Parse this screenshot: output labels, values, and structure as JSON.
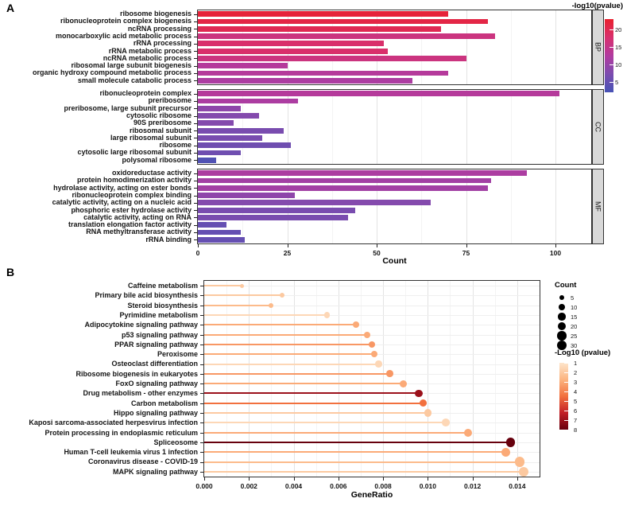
{
  "figure": {
    "panelA": {
      "label": "A"
    },
    "panelB": {
      "label": "B"
    }
  },
  "chart_data": [
    {
      "type": "bar",
      "panel": "A",
      "orientation": "horizontal",
      "xlabel": "Count",
      "xlim": [
        0,
        110
      ],
      "xticks": [
        0,
        25,
        50,
        75,
        100
      ],
      "color_legend": {
        "title": "-log10(pvalue)",
        "domain": [
          2,
          23
        ],
        "ticks": [
          20,
          15,
          10,
          5
        ],
        "stops": [
          "#4753B5",
          "#7C4CAF",
          "#B13BA0",
          "#D8306E",
          "#E9202E"
        ]
      },
      "facets": [
        {
          "label": "BP",
          "rows": [
            {
              "label": "ribosome biogenesis",
              "value": 70,
              "neglog10_pvalue": 22
            },
            {
              "label": "ribonucleoprotein complex biogenesis",
              "value": 81,
              "neglog10_pvalue": 21
            },
            {
              "label": "ncRNA processing",
              "value": 68,
              "neglog10_pvalue": 20
            },
            {
              "label": "monocarboxylic acid metabolic process",
              "value": 83,
              "neglog10_pvalue": 16
            },
            {
              "label": "rRNA processing",
              "value": 52,
              "neglog10_pvalue": 18
            },
            {
              "label": "rRNA metabolic process",
              "value": 53,
              "neglog10_pvalue": 18
            },
            {
              "label": "ncRNA metabolic process",
              "value": 75,
              "neglog10_pvalue": 16
            },
            {
              "label": "ribosomal large subunit biogenesis",
              "value": 25,
              "neglog10_pvalue": 13
            },
            {
              "label": "organic hydroxy compound metabolic process",
              "value": 70,
              "neglog10_pvalue": 13
            },
            {
              "label": "small molecule catabolic process",
              "value": 60,
              "neglog10_pvalue": 12
            }
          ]
        },
        {
          "label": "CC",
          "rows": [
            {
              "label": "ribonucleoprotein complex",
              "value": 101,
              "neglog10_pvalue": 13
            },
            {
              "label": "preribosome",
              "value": 28,
              "neglog10_pvalue": 12
            },
            {
              "label": "preribosome, large subunit precursor",
              "value": 12,
              "neglog10_pvalue": 9
            },
            {
              "label": "cytosolic ribosome",
              "value": 17,
              "neglog10_pvalue": 8
            },
            {
              "label": "90S preribosome",
              "value": 10,
              "neglog10_pvalue": 8
            },
            {
              "label": "ribosomal subunit",
              "value": 24,
              "neglog10_pvalue": 7
            },
            {
              "label": "large ribosomal subunit",
              "value": 18,
              "neglog10_pvalue": 7
            },
            {
              "label": "ribosome",
              "value": 26,
              "neglog10_pvalue": 6
            },
            {
              "label": "cytosolic large ribosomal subunit",
              "value": 12,
              "neglog10_pvalue": 6
            },
            {
              "label": "polysomal ribosome",
              "value": 5,
              "neglog10_pvalue": 3
            }
          ]
        },
        {
          "label": "MF",
          "rows": [
            {
              "label": "oxidoreductase activity",
              "value": 92,
              "neglog10_pvalue": 12
            },
            {
              "label": "protein homodimerization activity",
              "value": 82,
              "neglog10_pvalue": 11
            },
            {
              "label": "hydrolase activity, acting on ester bonds",
              "value": 81,
              "neglog10_pvalue": 11
            },
            {
              "label": "ribonucleoprotein complex binding",
              "value": 27,
              "neglog10_pvalue": 9
            },
            {
              "label": "catalytic activity, acting on a nucleic acid",
              "value": 65,
              "neglog10_pvalue": 8
            },
            {
              "label": "phosphoric ester hydrolase activity",
              "value": 44,
              "neglog10_pvalue": 7
            },
            {
              "label": "catalytic activity, acting on RNA",
              "value": 42,
              "neglog10_pvalue": 7
            },
            {
              "label": "translation elongation factor activity",
              "value": 8,
              "neglog10_pvalue": 5
            },
            {
              "label": "RNA methyltransferase activity",
              "value": 12,
              "neglog10_pvalue": 5
            },
            {
              "label": "rRNA binding",
              "value": 13,
              "neglog10_pvalue": 5
            }
          ]
        }
      ]
    },
    {
      "type": "lollipop",
      "panel": "B",
      "xlabel": "GeneRatio",
      "xlim": [
        0,
        0.015
      ],
      "xticks": [
        0,
        0.002,
        0.004,
        0.006,
        0.008,
        0.01,
        0.012,
        0.014
      ],
      "count_legend": {
        "title": "Count",
        "values": [
          5,
          10,
          15,
          20,
          25,
          30
        ]
      },
      "color_legend": {
        "title": "-Log10 (pvalue)",
        "domain": [
          1,
          8
        ],
        "ticks": [
          1,
          2,
          3,
          4,
          5,
          6,
          7,
          8
        ],
        "stops": [
          "#FDE5CB",
          "#FCB480",
          "#F2703E",
          "#C21E26",
          "#67000D"
        ]
      },
      "rows": [
        {
          "label": "Caffeine metabolism",
          "gene_ratio": 0.0017,
          "count": 3,
          "neglog10_pvalue": 2
        },
        {
          "label": "Primary bile acid biosynthesis",
          "gene_ratio": 0.0035,
          "count": 5,
          "neglog10_pvalue": 2
        },
        {
          "label": "Steroid biosynthesis",
          "gene_ratio": 0.003,
          "count": 5,
          "neglog10_pvalue": 2.5
        },
        {
          "label": "Pyrimidine metabolism",
          "gene_ratio": 0.0055,
          "count": 8,
          "neglog10_pvalue": 1.5
        },
        {
          "label": "Adipocytokine signaling pathway",
          "gene_ratio": 0.0068,
          "count": 10,
          "neglog10_pvalue": 3
        },
        {
          "label": "p53 signaling pathway",
          "gene_ratio": 0.0073,
          "count": 11,
          "neglog10_pvalue": 3
        },
        {
          "label": "PPAR signaling pathway",
          "gene_ratio": 0.0075,
          "count": 12,
          "neglog10_pvalue": 3.5
        },
        {
          "label": "Peroxisome",
          "gene_ratio": 0.0076,
          "count": 12,
          "neglog10_pvalue": 3
        },
        {
          "label": "Osteoclast differentiation",
          "gene_ratio": 0.0078,
          "count": 12,
          "neglog10_pvalue": 1.5
        },
        {
          "label": "Ribosome biogenesis in eukaryotes",
          "gene_ratio": 0.0083,
          "count": 13,
          "neglog10_pvalue": 3.5
        },
        {
          "label": "FoxO signaling pathway",
          "gene_ratio": 0.0089,
          "count": 14,
          "neglog10_pvalue": 3
        },
        {
          "label": "Drug metabolism - other enzymes",
          "gene_ratio": 0.0096,
          "count": 15,
          "neglog10_pvalue": 7
        },
        {
          "label": "Carbon metabolism",
          "gene_ratio": 0.0098,
          "count": 15,
          "neglog10_pvalue": 4.5
        },
        {
          "label": "Hippo signaling pathway",
          "gene_ratio": 0.01,
          "count": 15,
          "neglog10_pvalue": 2
        },
        {
          "label": "Kaposi sarcoma-associated herpesvirus infection",
          "gene_ratio": 0.0108,
          "count": 17,
          "neglog10_pvalue": 1.5
        },
        {
          "label": "Protein processing in endoplasmic reticulum",
          "gene_ratio": 0.0118,
          "count": 19,
          "neglog10_pvalue": 3
        },
        {
          "label": "Spliceosome",
          "gene_ratio": 0.0137,
          "count": 26,
          "neglog10_pvalue": 8
        },
        {
          "label": "Human T-cell leukemia virus 1 infection",
          "gene_ratio": 0.0135,
          "count": 24,
          "neglog10_pvalue": 3
        },
        {
          "label": "Coronavirus disease - COVID-19",
          "gene_ratio": 0.0141,
          "count": 29,
          "neglog10_pvalue": 2.5
        },
        {
          "label": "MAPK signaling pathway",
          "gene_ratio": 0.0143,
          "count": 29,
          "neglog10_pvalue": 2
        }
      ]
    }
  ]
}
